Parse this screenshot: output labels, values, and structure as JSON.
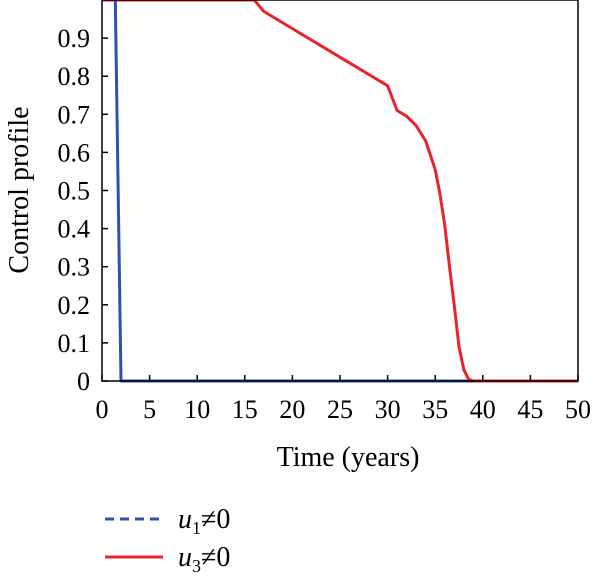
{
  "chart_data": {
    "type": "line",
    "title": "",
    "xlabel": "Time (years)",
    "ylabel": "Control profile",
    "xlim": [
      0,
      50
    ],
    "ylim": [
      0,
      1
    ],
    "xticks": [
      "0",
      "5",
      "10",
      "15",
      "20",
      "25",
      "30",
      "35",
      "40",
      "45",
      "50"
    ],
    "yticks": [
      "0",
      "0.1",
      "0.2",
      "0.3",
      "0.4",
      "0.5",
      "0.6",
      "0.7",
      "0.8",
      "0.9"
    ],
    "grid": false,
    "legend_position": "bottom-left",
    "series": [
      {
        "name": "u1≠0",
        "legend_var": "u",
        "legend_sub": "1",
        "legend_rest": "≠0",
        "color": "#3050b0",
        "style": "dashed",
        "x": [
          0,
          1.4,
          2.0,
          50
        ],
        "y": [
          1.0,
          1.0,
          0.0,
          0.0
        ]
      },
      {
        "name": "u3≠0",
        "legend_var": "u",
        "legend_sub": "3",
        "legend_rest": "≠0",
        "color": "#e8242a",
        "style": "solid",
        "x": [
          0,
          16.0,
          17.0,
          20,
          25,
          30,
          31.0,
          32.0,
          33.0,
          34.0,
          35.0,
          35.5,
          36.0,
          36.5,
          37.0,
          37.5,
          38.0,
          38.5,
          39.0,
          50
        ],
        "y": [
          1.0,
          1.0,
          0.97,
          0.925,
          0.85,
          0.775,
          0.71,
          0.695,
          0.67,
          0.63,
          0.555,
          0.49,
          0.41,
          0.3,
          0.2,
          0.09,
          0.03,
          0.005,
          0.0,
          0.0
        ]
      }
    ]
  }
}
